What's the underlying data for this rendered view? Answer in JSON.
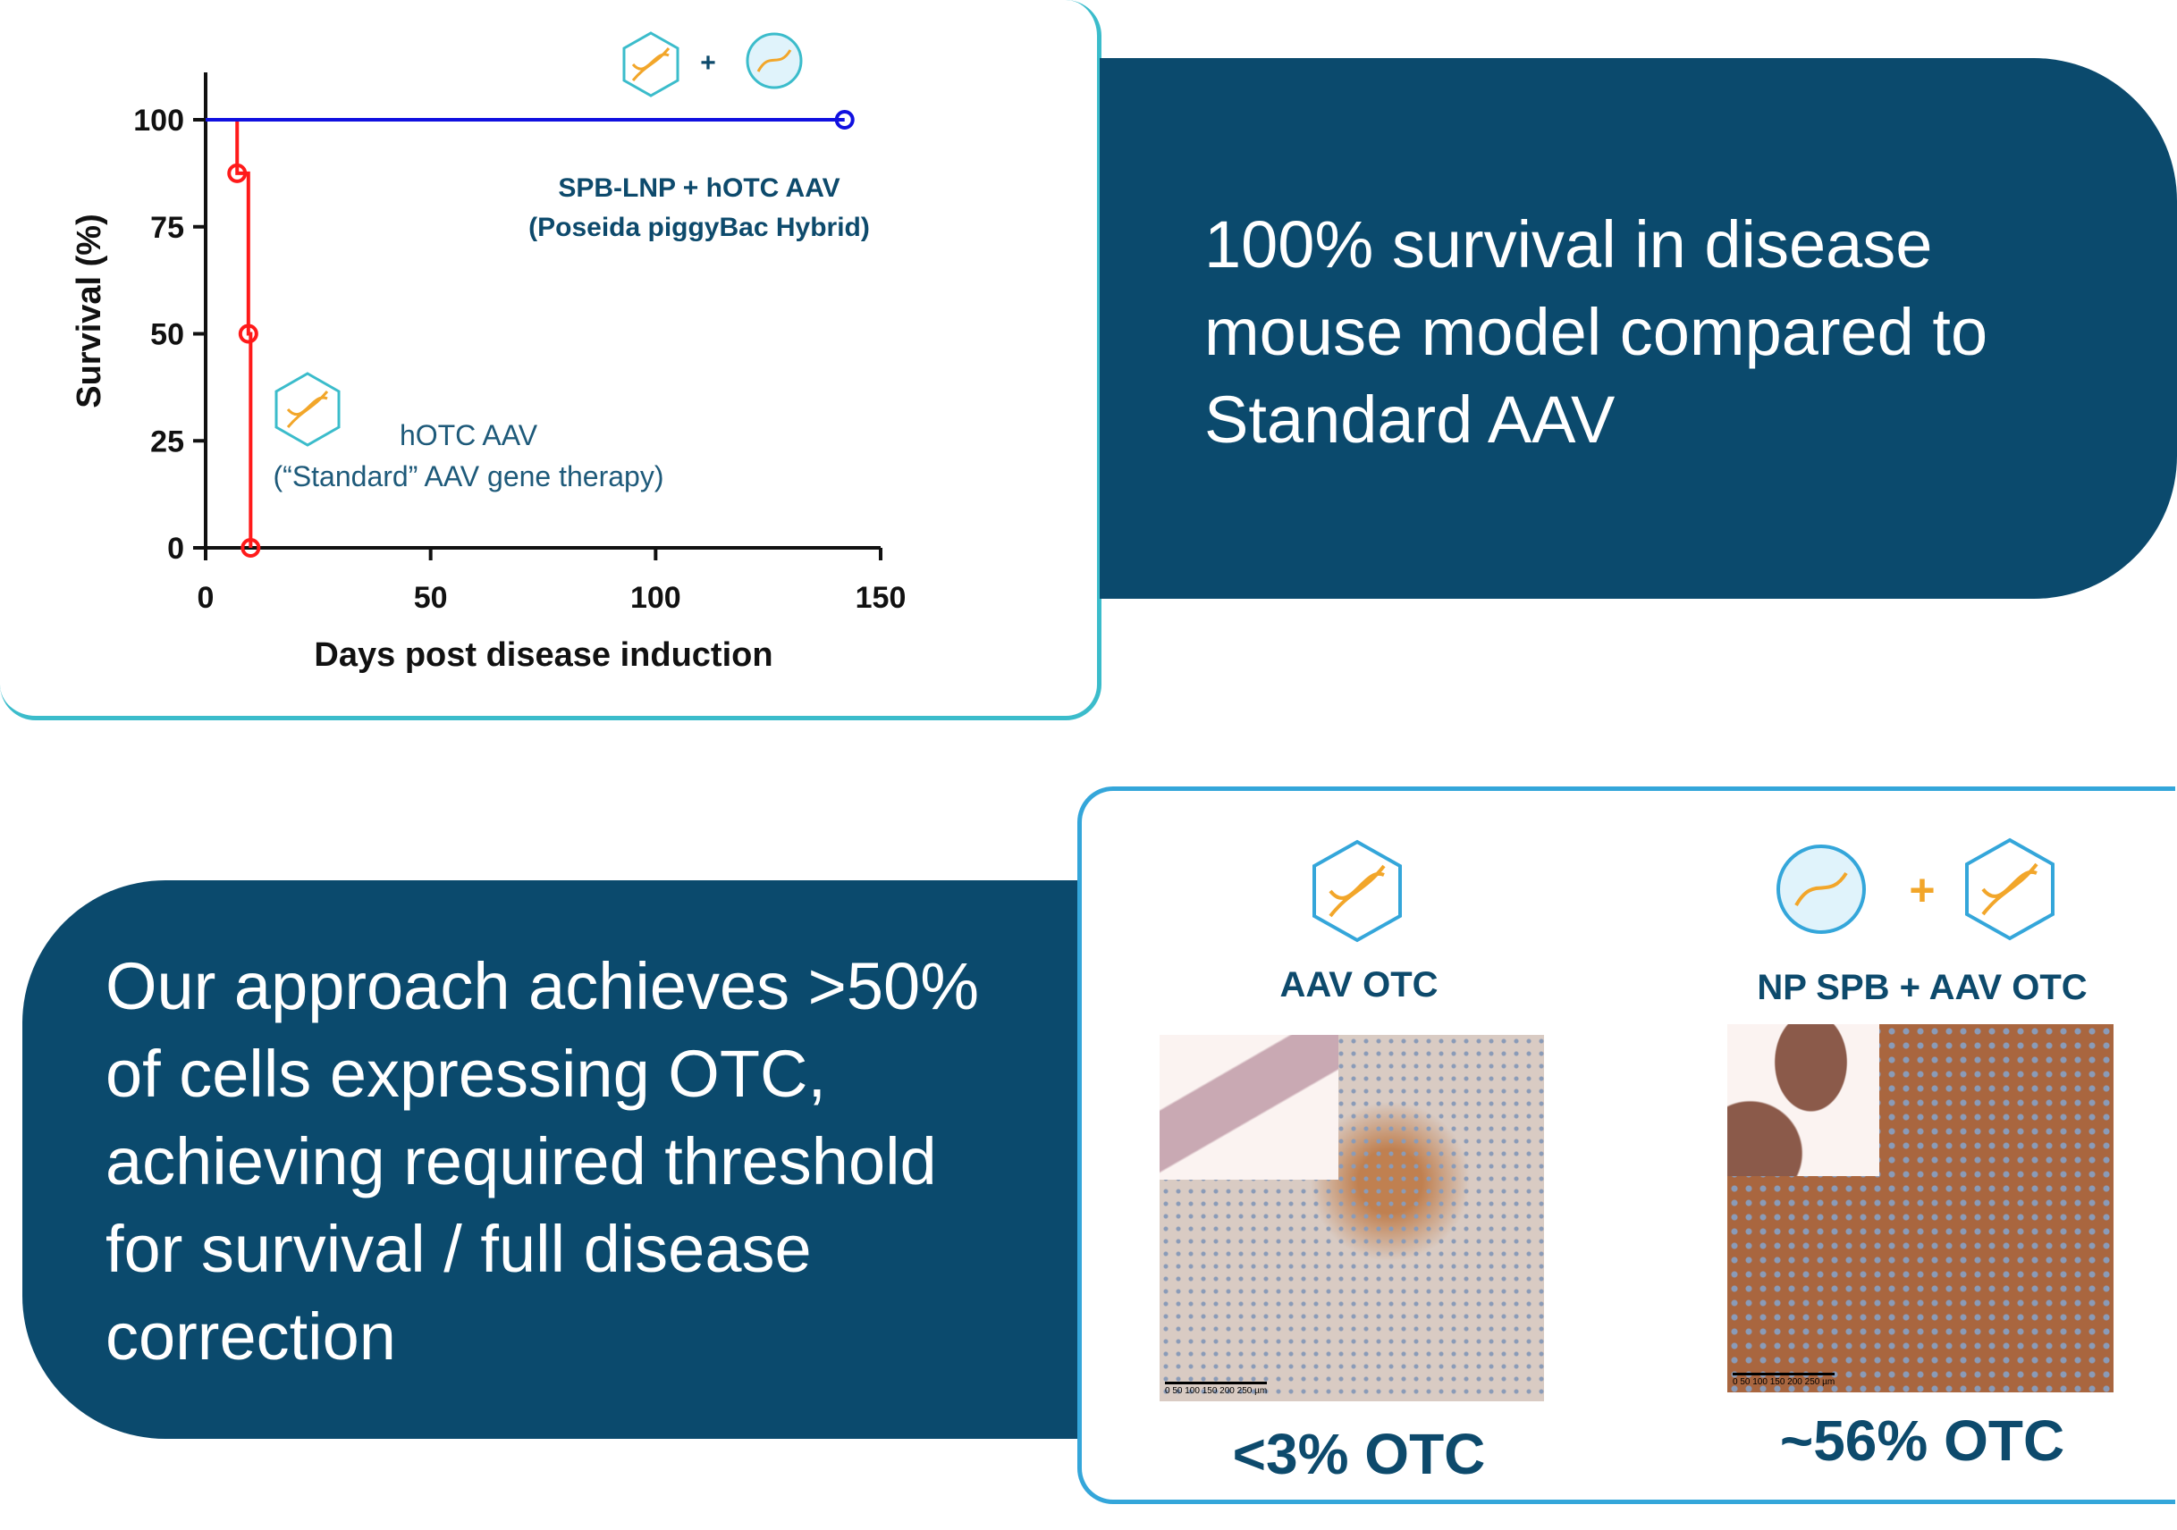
{
  "chart_data": {
    "type": "line",
    "subtype": "kaplan-meier survival",
    "xlabel": "Days post disease induction",
    "ylabel": "Survival (%)",
    "xlim": [
      0,
      150
    ],
    "ylim": [
      0,
      100
    ],
    "xticks": [
      0,
      50,
      100,
      150
    ],
    "yticks": [
      0,
      25,
      50,
      75,
      100
    ],
    "grid": false,
    "series": [
      {
        "name": "SPB-LNP + hOTC AAV (Poseida piggyBac Hybrid)",
        "color": "#1010e0",
        "steps": [
          [
            0,
            100
          ],
          [
            142,
            100
          ]
        ],
        "censored": [
          [
            142,
            100
          ]
        ]
      },
      {
        "name": "hOTC AAV (“Standard” AAV gene therapy)",
        "color": "#ff1a1a",
        "steps": [
          [
            0,
            100
          ],
          [
            7,
            100
          ],
          [
            7,
            87.5
          ],
          [
            9.5,
            87.5
          ],
          [
            9.5,
            50
          ],
          [
            10,
            50
          ],
          [
            10,
            0
          ]
        ],
        "censored": [
          [
            7,
            87.5
          ],
          [
            9.5,
            50
          ],
          [
            10,
            0
          ]
        ]
      }
    ],
    "annotations": {
      "combo_line1": "SPB-LNP + hOTC AAV",
      "combo_line2": "(Poseida piggyBac Hybrid)",
      "std_line1": "hOTC AAV",
      "std_line2": "(“Standard” AAV gene therapy)",
      "plus": "+"
    }
  },
  "panels": {
    "survival_text": "100% survival in disease mouse model compared to Standard AAV",
    "otc_text": "Our approach achieves >50% of cells expressing OTC, achieving required threshold for survival / full disease correction"
  },
  "histology": {
    "left": {
      "title": "AAV OTC",
      "result": "<3% OTC",
      "scale": "0 50 100 150 200 250 µm"
    },
    "right": {
      "title": "NP SPB + AAV OTC",
      "result": "~56% OTC",
      "scale": "0 50 100 150 200 250 µm",
      "plus": "+"
    }
  },
  "colors": {
    "navy": "#0b4a6d",
    "teal": "#3bbccb",
    "orange": "#f2a62a",
    "icon_blue": "#34a6da"
  }
}
